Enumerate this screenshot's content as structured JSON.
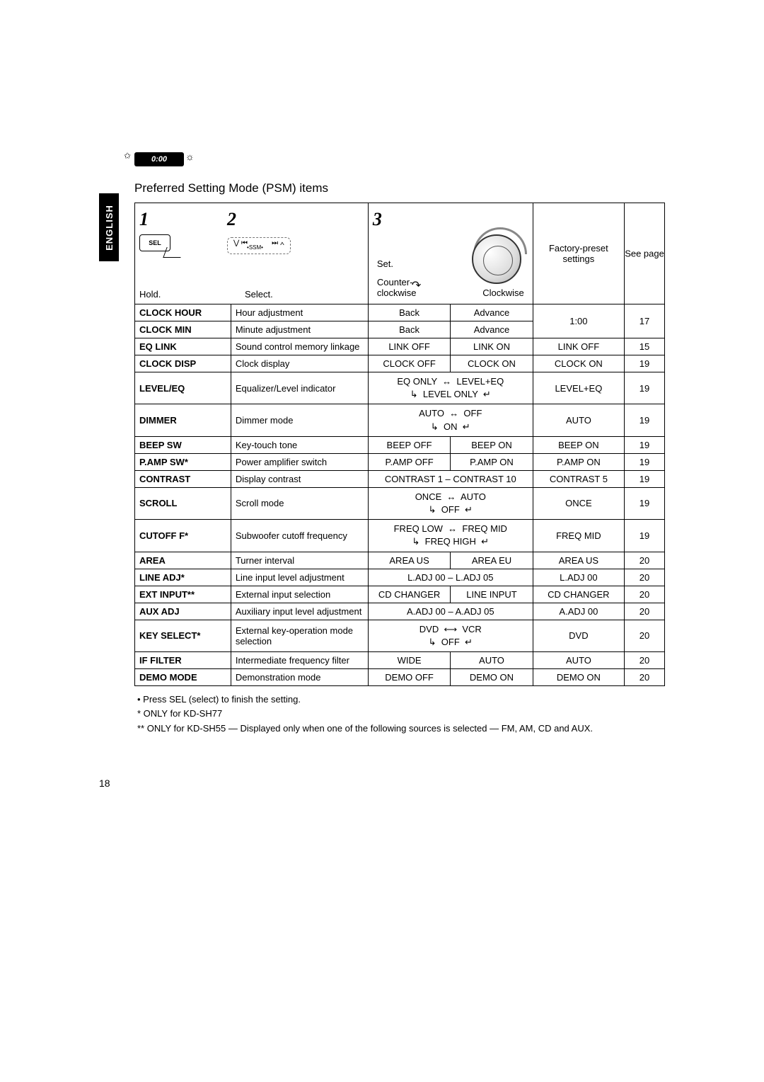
{
  "colors": {
    "text": "#000000",
    "background": "#ffffff",
    "tab_bg": "#000000",
    "tab_text": "#ffffff",
    "border": "#000000",
    "dial_arrow": "#888888"
  },
  "fonts": {
    "body_size_pt": 10,
    "title_size_pt": 13,
    "bignum_size_pt": 20,
    "bignum_family": "Times New Roman"
  },
  "lang_tab": "ENGLISH",
  "badge_text": "0:00",
  "title": "Preferred Setting Mode (PSM) items",
  "header": {
    "col1_num": "1",
    "col1_label": "Hold.",
    "sel_label": "SEL",
    "col2_num": "2",
    "col2_label": "Select.",
    "ssm": "SSM",
    "col3_num": "3",
    "set": "Set.",
    "ccw": "Counter-\nclockwise",
    "cw": "Clockwise",
    "preset": "Factory-preset settings",
    "page": "See page"
  },
  "rows": [
    {
      "name": "CLOCK HOUR",
      "desc": "Hour adjustment",
      "opt1": "Back",
      "opt2": "Advance",
      "preset": "1:00",
      "page": "17",
      "preset_rowspan": 2,
      "page_rowspan": 2
    },
    {
      "name": "CLOCK MIN",
      "desc": "Minute adjustment",
      "opt1": "Back",
      "opt2": "Advance"
    },
    {
      "name": "EQ LINK",
      "desc": "Sound control memory linkage",
      "opt1": "LINK OFF",
      "opt2": "LINK ON",
      "preset": "LINK OFF",
      "page": "15"
    },
    {
      "name": "CLOCK DISP",
      "desc": "Clock display",
      "opt1": "CLOCK OFF",
      "opt2": "CLOCK ON",
      "preset": "CLOCK ON",
      "page": "19"
    },
    {
      "name": "LEVEL/EQ",
      "desc": "Equalizer/Level indicator",
      "optspan": "leveleq",
      "preset": "LEVEL+EQ",
      "page": "19"
    },
    {
      "name": "DIMMER",
      "desc": "Dimmer mode",
      "optspan": "dimmer",
      "preset": "AUTO",
      "page": "19"
    },
    {
      "name": "BEEP SW",
      "desc": "Key-touch tone",
      "opt1": "BEEP OFF",
      "opt2": "BEEP ON",
      "preset": "BEEP ON",
      "page": "19"
    },
    {
      "name": "P.AMP SW*",
      "desc": "Power amplifier switch",
      "opt1": "P.AMP OFF",
      "opt2": "P.AMP ON",
      "preset": "P.AMP ON",
      "page": "19"
    },
    {
      "name": "CONTRAST",
      "desc": "Display contrast",
      "optspan_text": "CONTRAST 1 – CONTRAST 10",
      "preset": "CONTRAST 5",
      "page": "19"
    },
    {
      "name": "SCROLL",
      "desc": "Scroll mode",
      "optspan": "scroll",
      "preset": "ONCE",
      "page": "19"
    },
    {
      "name": "CUTOFF F*",
      "desc": "Subwoofer cutoff frequency",
      "optspan": "cutoff",
      "preset": "FREQ MID",
      "page": "19"
    },
    {
      "name": "AREA",
      "desc": "Turner interval",
      "opt1": "AREA US",
      "opt2": "AREA EU",
      "preset": "AREA US",
      "page": "20"
    },
    {
      "name": "LINE ADJ*",
      "desc": "Line input level adjustment",
      "optspan_text": "L.ADJ 00 – L.ADJ 05",
      "preset": "L.ADJ 00",
      "page": "20"
    },
    {
      "name": "EXT INPUT**",
      "desc": "External input selection",
      "opt1": "CD CHANGER",
      "opt2": "LINE INPUT",
      "preset": "CD CHANGER",
      "page": "20"
    },
    {
      "name": "AUX ADJ",
      "desc": "Auxiliary input level adjustment",
      "optspan_text": "A.ADJ 00 – A.ADJ 05",
      "preset": "A.ADJ 00",
      "page": "20"
    },
    {
      "name": "KEY SELECT*",
      "desc": "External key-operation mode selection",
      "optspan": "keyselect",
      "preset": "DVD",
      "page": "20"
    },
    {
      "name": "IF FILTER",
      "desc": "Intermediate frequency filter",
      "opt1": "WIDE",
      "opt2": "AUTO",
      "preset": "AUTO",
      "page": "20"
    },
    {
      "name": "DEMO MODE",
      "desc": "Demonstration mode",
      "opt1": "DEMO OFF",
      "opt2": "DEMO ON",
      "preset": "DEMO ON",
      "page": "20"
    }
  ],
  "opt_fragments": {
    "leveleq": {
      "a": "EQ ONLY",
      "b": "LEVEL+EQ",
      "c": "LEVEL ONLY"
    },
    "dimmer": {
      "a": "AUTO",
      "b": "OFF",
      "c": "ON"
    },
    "scroll": {
      "a": "ONCE",
      "b": "AUTO",
      "c": "OFF"
    },
    "cutoff": {
      "a": "FREQ LOW",
      "b": "FREQ MID",
      "c": "FREQ HIGH"
    },
    "keyselect": {
      "a": "DVD",
      "b": "VCR",
      "c": "OFF"
    }
  },
  "notes": {
    "n1": "• Press SEL (select) to finish the setting.",
    "n2": "* ONLY for KD-SH77",
    "n3": "** ONLY for KD-SH55 — Displayed only when one of the following sources is selected — FM, AM, CD and AUX."
  },
  "page_number": "18"
}
